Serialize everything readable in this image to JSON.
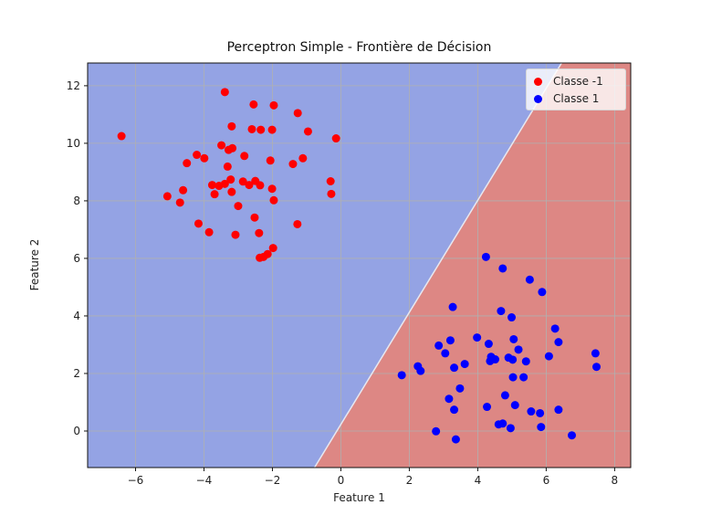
{
  "chart_data": {
    "type": "scatter",
    "title": "Perceptron Simple - Frontière de Décision",
    "xlabel": "Feature 1",
    "ylabel": "Feature 2",
    "xlim": [
      -7.4,
      8.47
    ],
    "ylim": [
      -1.27,
      12.79
    ],
    "x_ticks": [
      -6,
      -4,
      -2,
      0,
      2,
      4,
      6,
      8
    ],
    "x_tick_labels": [
      "−6",
      "−4",
      "−2",
      "0",
      "2",
      "4",
      "6",
      "8"
    ],
    "y_ticks": [
      0,
      2,
      4,
      6,
      8,
      10,
      12
    ],
    "y_tick_labels": [
      "0",
      "2",
      "4",
      "6",
      "8",
      "10",
      "12"
    ],
    "grid": true,
    "legend_position": "upper right",
    "decision_boundary": {
      "points": [
        [
          -0.77,
          -1.27
        ],
        [
          6.45,
          12.79
        ]
      ],
      "region_colors": {
        "class_-1": "#94a3e4",
        "class_1": "#dd8784"
      }
    },
    "series": [
      {
        "name": "Classe -1",
        "color": "#ff0000",
        "points": [
          [
            -6.41,
            10.25
          ],
          [
            -3.39,
            11.78
          ],
          [
            -2.55,
            11.35
          ],
          [
            -1.96,
            11.32
          ],
          [
            -1.26,
            11.05
          ],
          [
            -3.19,
            10.59
          ],
          [
            -2.6,
            10.49
          ],
          [
            -2.34,
            10.47
          ],
          [
            -2.01,
            10.47
          ],
          [
            -0.96,
            10.41
          ],
          [
            -0.14,
            10.17
          ],
          [
            -3.49,
            9.93
          ],
          [
            -3.28,
            9.77
          ],
          [
            -3.17,
            9.83
          ],
          [
            -4.21,
            9.6
          ],
          [
            -3.99,
            9.48
          ],
          [
            -2.82,
            9.56
          ],
          [
            -4.5,
            9.31
          ],
          [
            -2.06,
            9.4
          ],
          [
            -1.4,
            9.28
          ],
          [
            -1.11,
            9.48
          ],
          [
            -3.31,
            9.19
          ],
          [
            -0.3,
            8.68
          ],
          [
            -0.28,
            8.24
          ],
          [
            -3.22,
            8.74
          ],
          [
            -2.86,
            8.67
          ],
          [
            -2.5,
            8.69
          ],
          [
            -2.68,
            8.55
          ],
          [
            -2.36,
            8.54
          ],
          [
            -3.76,
            8.55
          ],
          [
            -3.56,
            8.52
          ],
          [
            -3.39,
            8.59
          ],
          [
            -3.69,
            8.23
          ],
          [
            -3.19,
            8.31
          ],
          [
            -2.01,
            8.42
          ],
          [
            -1.96,
            8.02
          ],
          [
            -4.61,
            8.37
          ],
          [
            -5.07,
            8.16
          ],
          [
            -4.7,
            7.94
          ],
          [
            -3.0,
            7.82
          ],
          [
            -2.52,
            7.42
          ],
          [
            -4.16,
            7.21
          ],
          [
            -1.27,
            7.19
          ],
          [
            -3.85,
            6.91
          ],
          [
            -3.08,
            6.82
          ],
          [
            -2.39,
            6.88
          ],
          [
            -1.98,
            6.36
          ],
          [
            -2.14,
            6.15
          ],
          [
            -2.26,
            6.05
          ],
          [
            -2.37,
            6.02
          ]
        ]
      },
      {
        "name": "Classe 1",
        "color": "#0000ff",
        "points": [
          [
            4.24,
            6.05
          ],
          [
            4.73,
            5.65
          ],
          [
            5.52,
            5.26
          ],
          [
            5.88,
            4.83
          ],
          [
            3.27,
            4.31
          ],
          [
            4.68,
            4.17
          ],
          [
            4.99,
            3.95
          ],
          [
            6.26,
            3.56
          ],
          [
            6.36,
            3.09
          ],
          [
            3.98,
            3.25
          ],
          [
            3.2,
            3.15
          ],
          [
            2.86,
            2.97
          ],
          [
            4.32,
            3.03
          ],
          [
            5.05,
            3.19
          ],
          [
            5.19,
            2.83
          ],
          [
            3.05,
            2.7
          ],
          [
            4.39,
            2.58
          ],
          [
            4.36,
            2.43
          ],
          [
            4.51,
            2.49
          ],
          [
            4.9,
            2.55
          ],
          [
            5.02,
            2.48
          ],
          [
            5.41,
            2.42
          ],
          [
            6.08,
            2.6
          ],
          [
            7.44,
            2.7
          ],
          [
            7.47,
            2.23
          ],
          [
            3.62,
            2.33
          ],
          [
            3.31,
            2.2
          ],
          [
            2.25,
            2.25
          ],
          [
            2.33,
            2.09
          ],
          [
            1.78,
            1.94
          ],
          [
            5.03,
            1.87
          ],
          [
            5.34,
            1.87
          ],
          [
            3.48,
            1.48
          ],
          [
            4.8,
            1.24
          ],
          [
            3.16,
            1.12
          ],
          [
            5.09,
            0.9
          ],
          [
            4.27,
            0.84
          ],
          [
            3.31,
            0.74
          ],
          [
            5.56,
            0.68
          ],
          [
            5.82,
            0.62
          ],
          [
            6.36,
            0.74
          ],
          [
            4.61,
            0.23
          ],
          [
            4.73,
            0.26
          ],
          [
            4.96,
            0.1
          ],
          [
            5.85,
            0.14
          ],
          [
            2.78,
            -0.01
          ],
          [
            6.75,
            -0.15
          ],
          [
            3.36,
            -0.29
          ]
        ]
      }
    ]
  },
  "legend": {
    "items": [
      {
        "label": "Classe -1",
        "color": "#ff0000"
      },
      {
        "label": "Classe 1",
        "color": "#0000ff"
      }
    ]
  }
}
